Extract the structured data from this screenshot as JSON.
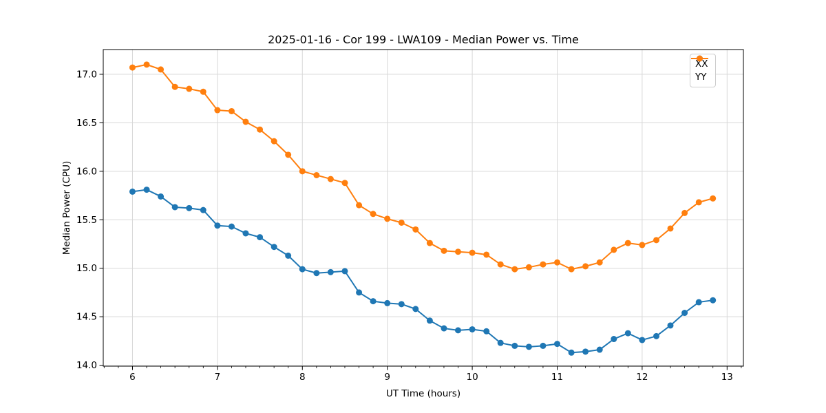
{
  "chart_data": {
    "type": "line",
    "title": "2025-01-16 - Cor 199 - LWA109 - Median Power vs. Time",
    "xlabel": "UT Time (hours)",
    "ylabel": "Median Power (CPU)",
    "x": [
      6.0,
      6.167,
      6.333,
      6.5,
      6.667,
      6.833,
      7.0,
      7.167,
      7.333,
      7.5,
      7.667,
      7.833,
      8.0,
      8.167,
      8.333,
      8.5,
      8.667,
      8.833,
      9.0,
      9.167,
      9.333,
      9.5,
      9.667,
      9.833,
      10.0,
      10.167,
      10.333,
      10.5,
      10.667,
      10.833,
      11.0,
      11.167,
      11.333,
      11.5,
      11.667,
      11.833,
      12.0,
      12.167,
      12.333,
      12.5,
      12.667,
      12.833
    ],
    "series": [
      {
        "name": "XX",
        "color": "#1f77b4",
        "values": [
          15.79,
          15.81,
          15.74,
          15.63,
          15.62,
          15.6,
          15.44,
          15.43,
          15.36,
          15.32,
          15.22,
          15.13,
          14.99,
          14.95,
          14.96,
          14.97,
          14.75,
          14.66,
          14.64,
          14.63,
          14.58,
          14.46,
          14.38,
          14.36,
          14.37,
          14.35,
          14.23,
          14.2,
          14.19,
          14.2,
          14.22,
          14.13,
          14.14,
          14.16,
          14.27,
          14.33,
          14.26,
          14.3,
          14.41,
          14.54,
          14.65,
          14.67
        ]
      },
      {
        "name": "YY",
        "color": "#ff7f0e",
        "values": [
          17.07,
          17.1,
          17.05,
          16.87,
          16.85,
          16.82,
          16.63,
          16.62,
          16.51,
          16.43,
          16.31,
          16.17,
          16.0,
          15.96,
          15.92,
          15.88,
          15.65,
          15.56,
          15.51,
          15.47,
          15.4,
          15.26,
          15.18,
          15.17,
          15.16,
          15.14,
          15.04,
          14.99,
          15.01,
          15.04,
          15.06,
          14.99,
          15.02,
          15.06,
          15.19,
          15.26,
          15.24,
          15.29,
          15.41,
          15.57,
          15.68,
          15.72
        ]
      }
    ],
    "xlim": [
      5.656,
      13.192
    ],
    "ylim": [
      13.99,
      17.255
    ],
    "xticks": [
      6,
      7,
      8,
      9,
      10,
      11,
      12,
      13
    ],
    "yticks": [
      14.0,
      14.5,
      15.0,
      15.5,
      16.0,
      16.5,
      17.0
    ],
    "x_minor_step": 0.1667,
    "grid": true,
    "grid_color": "#d8d8d8",
    "marker": "circle",
    "legend": {
      "position": "upper right",
      "entries": [
        "XX",
        "YY"
      ]
    }
  }
}
